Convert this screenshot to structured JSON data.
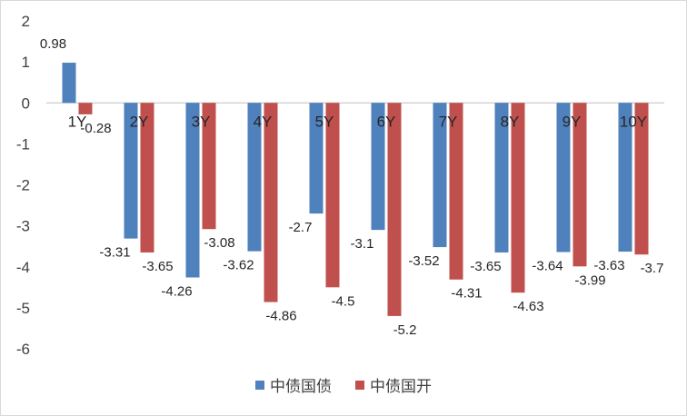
{
  "chart_data": {
    "type": "bar",
    "categories": [
      "1Y",
      "2Y",
      "3Y",
      "4Y",
      "5Y",
      "6Y",
      "7Y",
      "8Y",
      "9Y",
      "10Y"
    ],
    "series": [
      {
        "name": "中债国债",
        "color": "#4F81BD",
        "values": [
          0.98,
          -3.31,
          -4.26,
          -3.62,
          -2.7,
          -3.1,
          -3.52,
          -3.65,
          -3.64,
          -3.63
        ]
      },
      {
        "name": "中债国开",
        "color": "#C0504D",
        "values": [
          -0.28,
          -3.65,
          -3.08,
          -4.86,
          -4.5,
          -5.2,
          -4.31,
          -4.63,
          -3.99,
          -3.7
        ]
      }
    ],
    "ylim": [
      -6,
      2
    ],
    "yticks": [
      2,
      1,
      0,
      -1,
      -2,
      -3,
      -4,
      -5,
      -6
    ],
    "grid": false,
    "legend_position": "bottom"
  }
}
